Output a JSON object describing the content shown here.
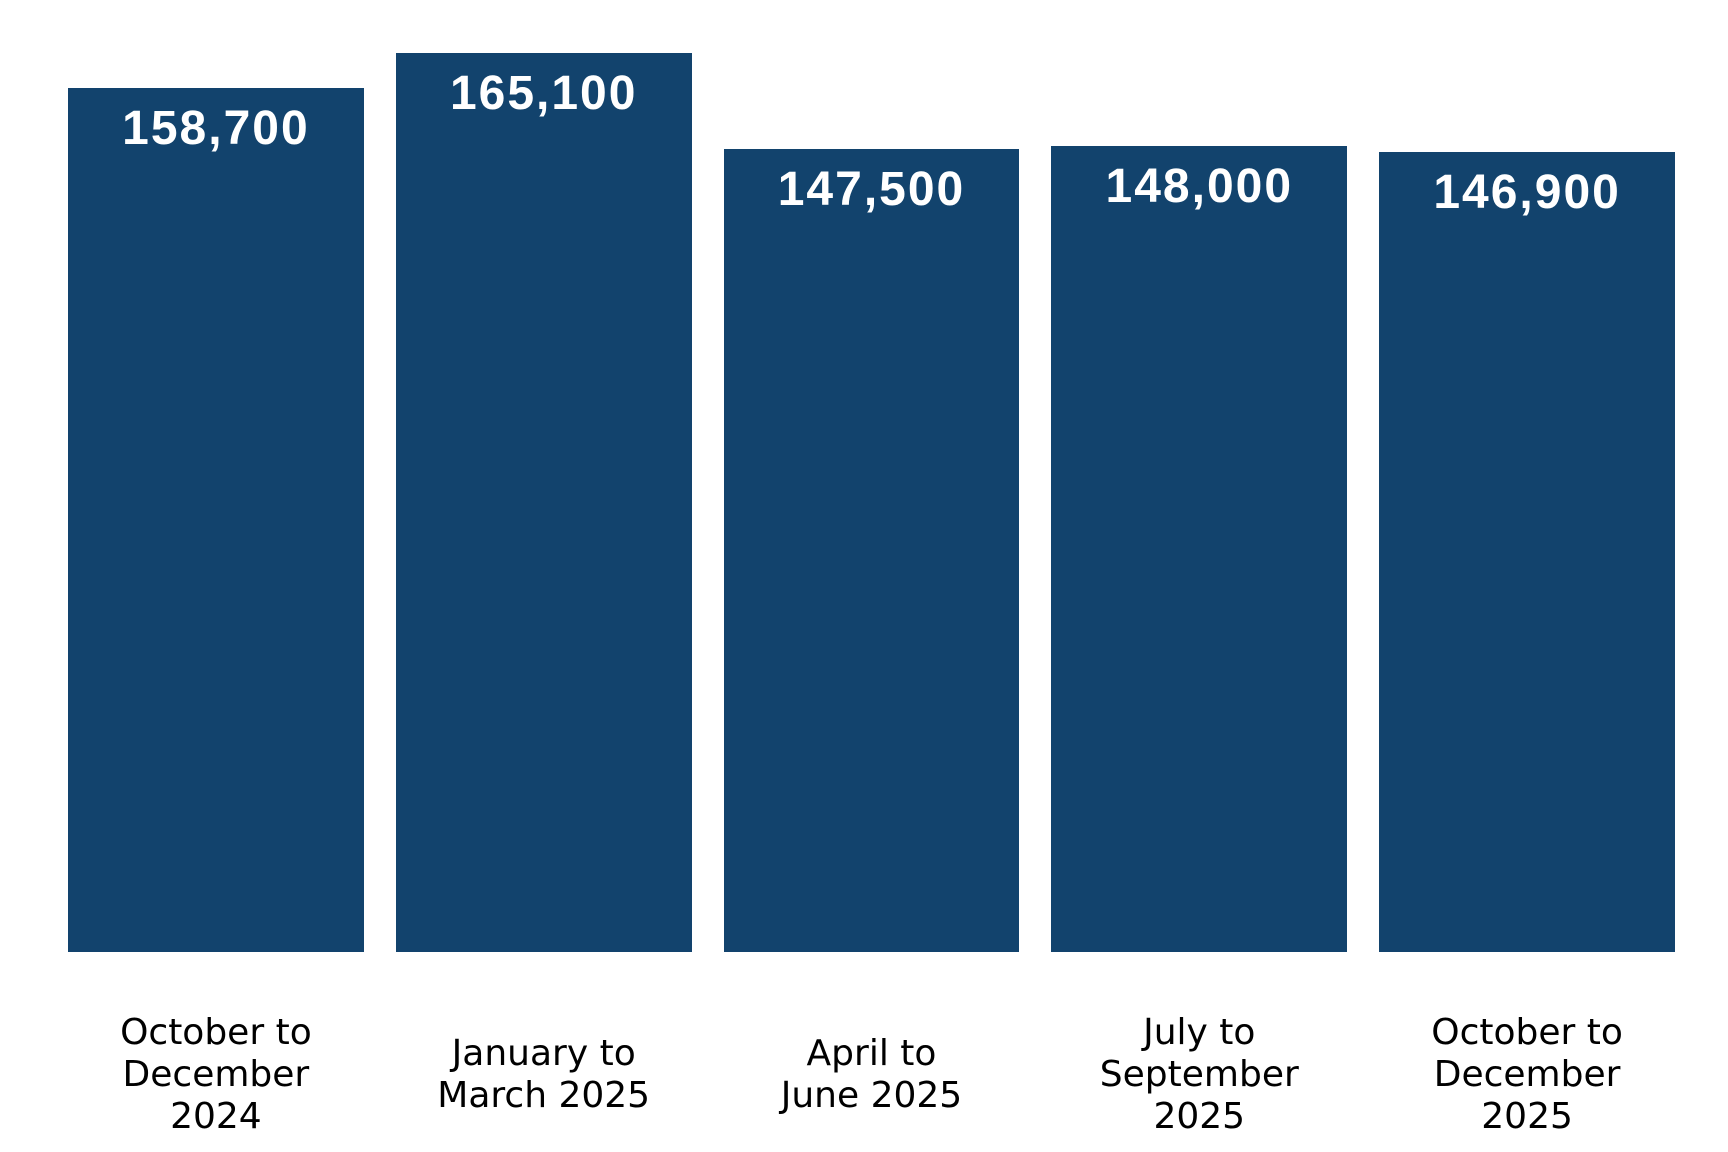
{
  "chart_data": {
    "type": "bar",
    "title": "",
    "xlabel": "",
    "ylabel": "",
    "categories": [
      "October to December 2024",
      "January to March 2025",
      "April to June 2025",
      "July to September 2025",
      "October to December 2025"
    ],
    "category_lines": [
      [
        "October to",
        "December",
        "2024"
      ],
      [
        "January to",
        "March 2025"
      ],
      [
        "April to",
        "June 2025"
      ],
      [
        "July to",
        "September",
        "2025"
      ],
      [
        "October to",
        "December",
        "2025"
      ]
    ],
    "values": [
      158700,
      165100,
      147500,
      148000,
      146900
    ],
    "value_labels": [
      "158,700",
      "165,100",
      "147,500",
      "148,000",
      "146,900"
    ],
    "ylim": [
      0,
      165100
    ],
    "grid": false,
    "legend": false,
    "axes_visible": false,
    "value_label_position": "inside-top",
    "bar_color": "#12436D",
    "value_label_color": "#FFFFFF",
    "category_label_color": "#000000",
    "background_color": "#FFFFFF"
  }
}
